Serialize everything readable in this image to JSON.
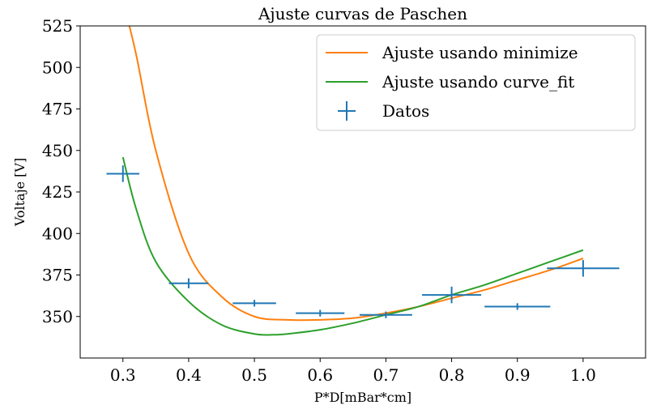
{
  "chart_data": {
    "type": "line",
    "title": "Ajuste curvas de Paschen",
    "xlabel": "P*D[mBar*cm]",
    "ylabel": "Voltaje [V]",
    "xlim": [
      0.235,
      1.095
    ],
    "ylim": [
      325,
      525
    ],
    "x_ticks": [
      0.3,
      0.4,
      0.5,
      0.6,
      0.7,
      0.8,
      0.9,
      1.0
    ],
    "x_tick_labels": [
      "0.3",
      "0.4",
      "0.5",
      "0.6",
      "0.7",
      "0.8",
      "0.9",
      "1.0"
    ],
    "y_ticks": [
      350,
      375,
      400,
      425,
      450,
      475,
      500,
      525
    ],
    "y_tick_labels": [
      "350",
      "375",
      "400",
      "425",
      "450",
      "475",
      "500",
      "525"
    ],
    "grid": false,
    "legend_position": "top-right",
    "series": [
      {
        "name": "Ajuste usando minimize",
        "kind": "line",
        "color": "#ff7f0e",
        "x": [
          0.3,
          0.32,
          0.35,
          0.4,
          0.45,
          0.5,
          0.55,
          0.6,
          0.65,
          0.7,
          0.75,
          0.8,
          0.85,
          0.9,
          0.95,
          1.0
        ],
        "y": [
          540,
          508,
          450,
          388,
          362,
          350,
          348,
          348,
          349,
          352,
          356,
          361,
          366,
          372,
          378,
          385
        ]
      },
      {
        "name": "Ajuste usando curve_fit",
        "kind": "line",
        "color": "#2ca02c",
        "x": [
          0.3,
          0.32,
          0.35,
          0.4,
          0.45,
          0.5,
          0.53,
          0.55,
          0.6,
          0.65,
          0.7,
          0.75,
          0.8,
          0.85,
          0.9,
          0.95,
          1.0
        ],
        "y": [
          446,
          415,
          383,
          359,
          345,
          339.5,
          339,
          339.5,
          342,
          346,
          351,
          356,
          363,
          369,
          376,
          383,
          390
        ]
      },
      {
        "name": "Datos",
        "kind": "errorbar",
        "color": "#1f77b4",
        "x": [
          0.3,
          0.4,
          0.5,
          0.6,
          0.7,
          0.8,
          0.9,
          1.0
        ],
        "y": [
          436,
          370,
          358,
          352,
          351,
          363,
          356,
          379
        ],
        "xerr": [
          0.025,
          0.03,
          0.033,
          0.037,
          0.04,
          0.045,
          0.05,
          0.055
        ],
        "yerr": [
          5,
          3,
          2,
          2,
          2,
          5,
          2,
          5
        ]
      }
    ]
  }
}
